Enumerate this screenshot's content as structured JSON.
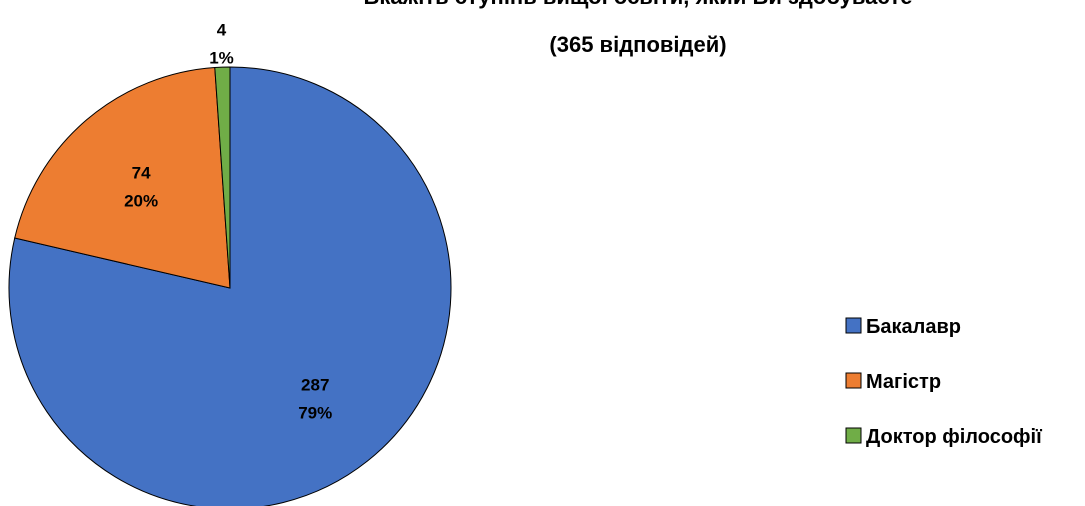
{
  "chart_data": {
    "type": "pie",
    "title": "Вкажіть ступінь вищої освіти, який Ви здобуваєте",
    "subtitle": "(365 відповідей)",
    "categories": [
      "Бакалавр",
      "Магістр",
      "Доктор філософії"
    ],
    "values": [
      287,
      74,
      4
    ],
    "percent_labels": [
      "79%",
      "20%",
      "1%"
    ],
    "colors": [
      "#4472C4",
      "#ED7D31",
      "#70AD47"
    ],
    "legend_position": "right"
  }
}
